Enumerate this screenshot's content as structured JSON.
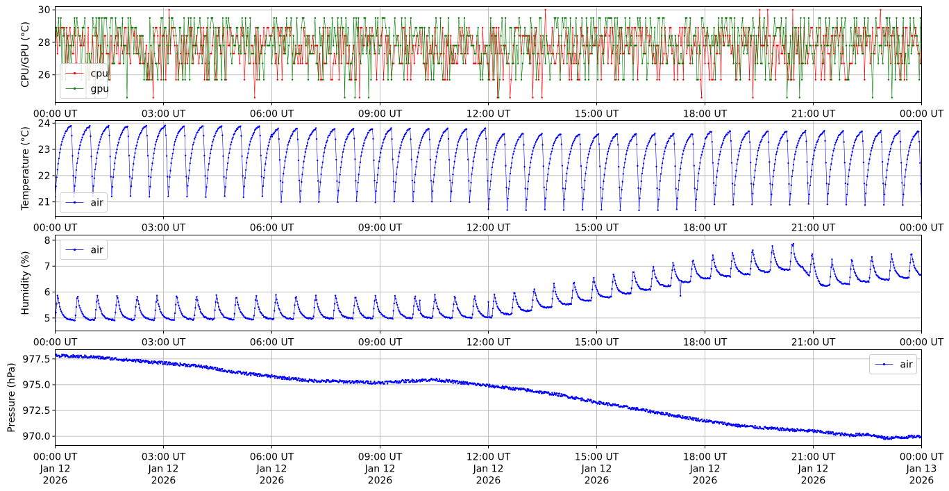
{
  "chart_data": [
    {
      "type": "line",
      "ylabel": "CPU/GPU (°C)",
      "ylim": [
        24.3,
        30.2
      ],
      "yticks": [
        26,
        28,
        30
      ],
      "xlim_hours": [
        0,
        24
      ],
      "xticks": [
        "00:00 UT",
        "03:00 UT",
        "06:00 UT",
        "09:00 UT",
        "12:00 UT",
        "15:00 UT",
        "18:00 UT",
        "21:00 UT",
        "00:00 UT"
      ],
      "grid": true,
      "legend": "lower-left",
      "series": [
        {
          "name": "cpu",
          "color": "#ff0000",
          "levels": [
            25.7,
            26.7,
            27.3,
            27.8,
            28.4,
            28.9
          ],
          "range": [
            24.6,
            30.0
          ]
        },
        {
          "name": "gpu",
          "color": "#008000",
          "levels": [
            25.7,
            26.7,
            27.3,
            27.8,
            28.4,
            28.9,
            29.5
          ],
          "range": [
            24.6,
            29.5
          ]
        }
      ]
    },
    {
      "type": "line",
      "ylabel": "Temperature (°C)",
      "ylim": [
        20.45,
        24.1
      ],
      "yticks": [
        21,
        22,
        23,
        24
      ],
      "xlim_hours": [
        0,
        24
      ],
      "xticks": [
        "00:00 UT",
        "03:00 UT",
        "06:00 UT",
        "09:00 UT",
        "12:00 UT",
        "15:00 UT",
        "18:00 UT",
        "21:00 UT",
        "00:00 UT"
      ],
      "grid": true,
      "legend": "lower-left",
      "series": [
        {
          "name": "air",
          "color": "#0000ff",
          "cycles_per_day": 46,
          "min": [
            21.2,
            21.0,
            20.7,
            20.9
          ],
          "max": [
            23.9,
            23.8,
            23.6,
            23.7
          ]
        }
      ]
    },
    {
      "type": "line",
      "ylabel": "Humidity (%)",
      "ylim": [
        4.5,
        8.2
      ],
      "yticks": [
        5,
        6,
        7,
        8
      ],
      "xlim_hours": [
        0,
        24
      ],
      "xticks": [
        "00:00 UT",
        "03:00 UT",
        "06:00 UT",
        "09:00 UT",
        "12:00 UT",
        "15:00 UT",
        "18:00 UT",
        "21:00 UT",
        "00:00 UT"
      ],
      "grid": true,
      "legend": "upper-left",
      "series": [
        {
          "name": "air",
          "color": "#0000ff",
          "base": [
            [
              0,
              4.9
            ],
            [
              12,
              5.0
            ],
            [
              15,
              5.7
            ],
            [
              18,
              6.5
            ],
            [
              20.7,
              6.9
            ],
            [
              21.2,
              6.2
            ],
            [
              24,
              6.6
            ]
          ],
          "peak": [
            [
              0,
              5.9
            ],
            [
              12,
              5.9
            ],
            [
              15,
              6.6
            ],
            [
              18,
              7.4
            ],
            [
              20.7,
              8.0
            ],
            [
              21.2,
              7.2
            ],
            [
              24,
              7.6
            ]
          ]
        }
      ]
    },
    {
      "type": "line",
      "ylabel": "Pressure (hPa)",
      "ylim": [
        969.1,
        978.4
      ],
      "yticks": [
        970.0,
        972.5,
        975.0,
        977.5
      ],
      "ytick_labels": [
        "970.0",
        "972.5",
        "975.0",
        "977.5"
      ],
      "xlim_hours": [
        0,
        24
      ],
      "xticks": [
        "00:00 UT",
        "03:00 UT",
        "06:00 UT",
        "09:00 UT",
        "12:00 UT",
        "15:00 UT",
        "18:00 UT",
        "21:00 UT",
        "00:00 UT"
      ],
      "xtick_dates": [
        "Jan 12",
        "Jan 12",
        "Jan 12",
        "Jan 12",
        "Jan 12",
        "Jan 12",
        "Jan 12",
        "Jan 12",
        "Jan 13"
      ],
      "xtick_years": [
        "2026",
        "2026",
        "2026",
        "2026",
        "2026",
        "2026",
        "2026",
        "2026",
        "2026"
      ],
      "grid": true,
      "legend": "upper-right",
      "series": [
        {
          "name": "air",
          "color": "#0000ff",
          "x_hours": [
            0,
            1,
            2,
            3,
            4,
            5,
            6,
            7,
            8,
            9,
            10,
            10.5,
            11,
            12,
            13,
            14,
            15,
            16,
            17,
            18,
            19,
            20,
            21,
            22,
            22.5,
            23,
            24
          ],
          "values": [
            977.8,
            977.7,
            977.4,
            977.1,
            976.8,
            976.2,
            975.8,
            975.4,
            975.3,
            975.2,
            975.4,
            975.5,
            975.3,
            974.9,
            974.5,
            974.0,
            973.3,
            972.7,
            972.1,
            971.5,
            971.0,
            970.7,
            970.5,
            970.1,
            970.2,
            969.8,
            970.0
          ]
        }
      ]
    }
  ]
}
